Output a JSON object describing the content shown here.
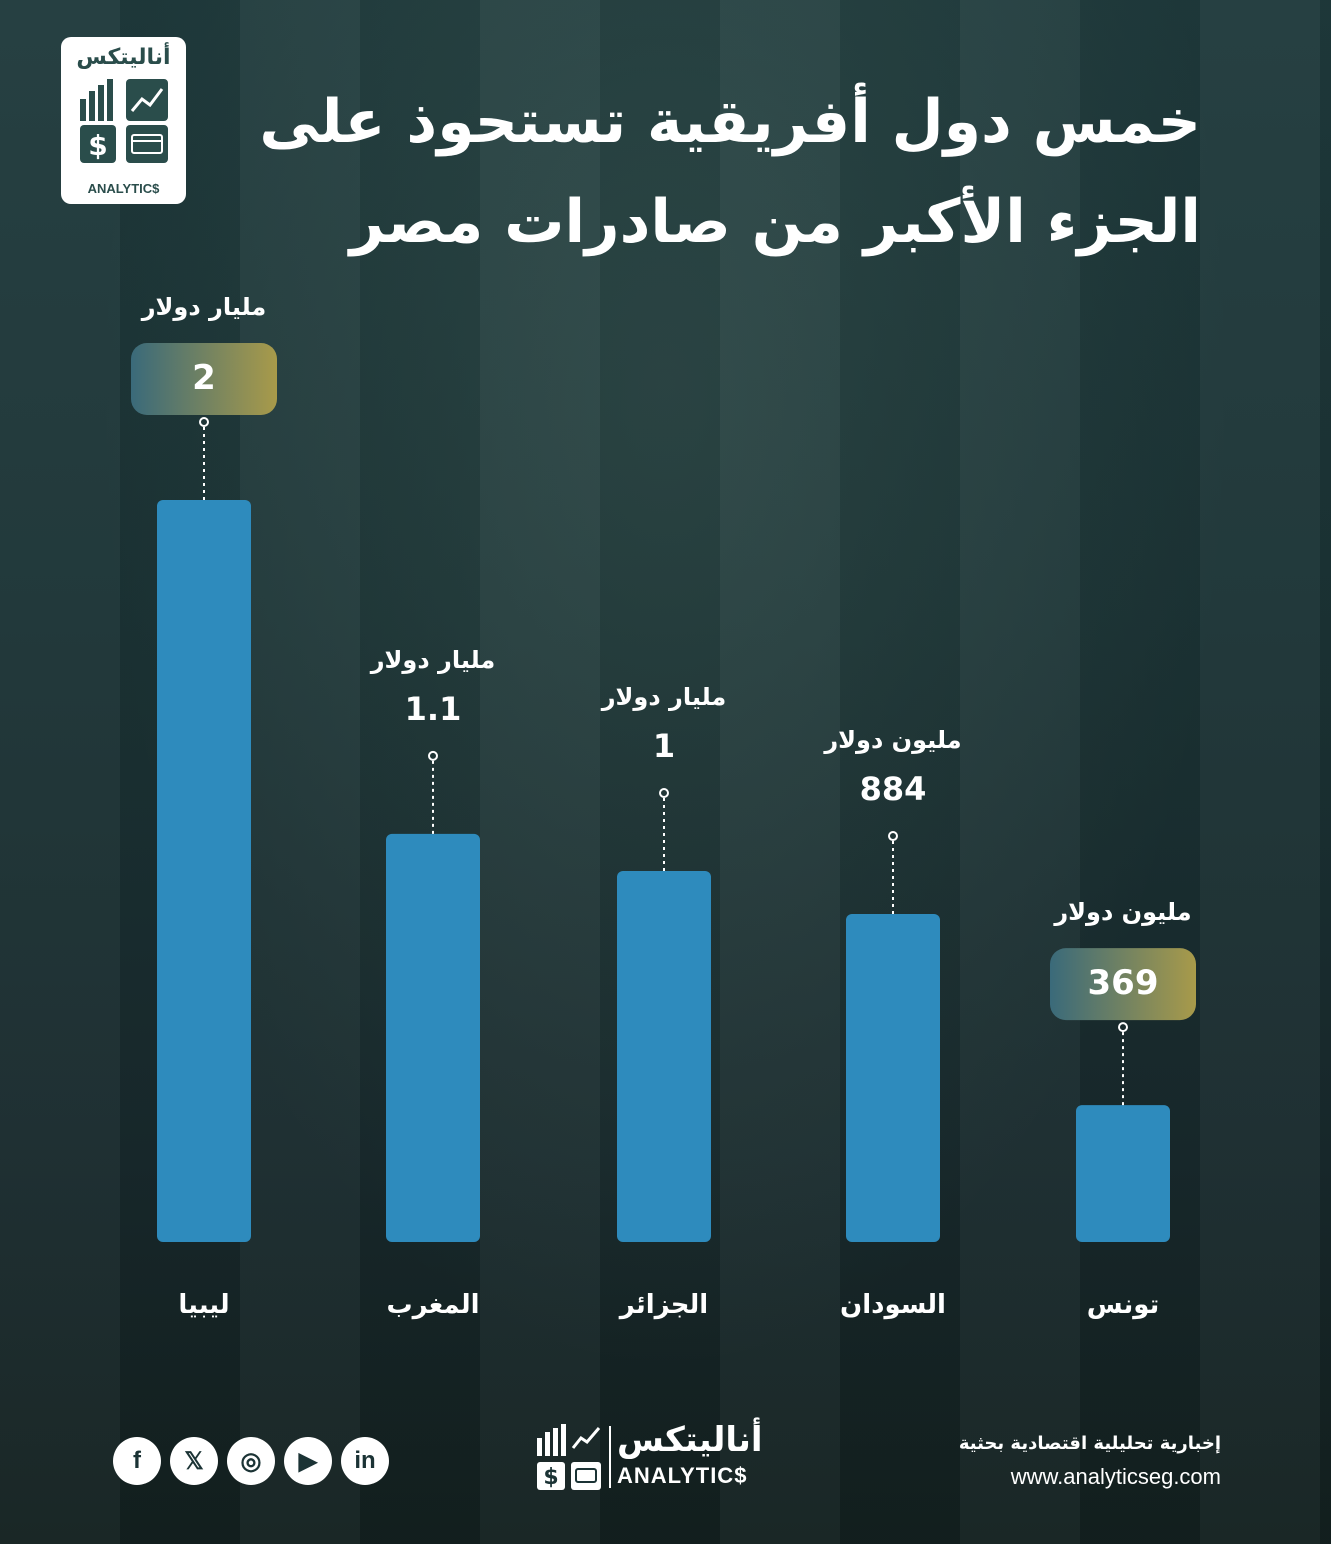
{
  "title": "خمس دول أفريقية تستحوذ على الجزء الأكبر من صادرات مصر",
  "logo": {
    "ar": "أناليتكس",
    "en": "ANALYTIC$"
  },
  "chart_data": {
    "type": "bar",
    "categories": [
      "ليبيا",
      "المغرب",
      "الجزائر",
      "السودان",
      "تونس"
    ],
    "values": [
      2,
      1.1,
      1,
      884,
      369
    ],
    "value_labels": [
      "2",
      "1.1",
      "1",
      "884",
      "369"
    ],
    "unit_labels": [
      "مليار دولار",
      "مليار دولار",
      "مليار دولار",
      "مليون دولار",
      "مليون دولار"
    ],
    "highlighted": [
      true,
      false,
      false,
      false,
      true
    ],
    "title": "",
    "xlabel": "",
    "ylabel": "",
    "grid": false,
    "bar_color": "#2e8bbd",
    "highlight_gradient": [
      "#3a6a7a",
      "#a89a4a"
    ]
  },
  "footer": {
    "tagline": "إخبارية تحليلية اقتصادية بحثية",
    "url": "www.analyticseg.com",
    "brand_ar": "أناليتكس",
    "brand_en": "ANALYTIC$",
    "socials": [
      {
        "name": "facebook",
        "glyph": "f"
      },
      {
        "name": "x",
        "glyph": "𝕏"
      },
      {
        "name": "instagram",
        "glyph": "◎"
      },
      {
        "name": "youtube",
        "glyph": "▶"
      },
      {
        "name": "linkedin",
        "glyph": "in"
      }
    ]
  },
  "colors": {
    "accent": "#2e8bbd",
    "background": "#1b3335",
    "text": "#ffffff"
  }
}
